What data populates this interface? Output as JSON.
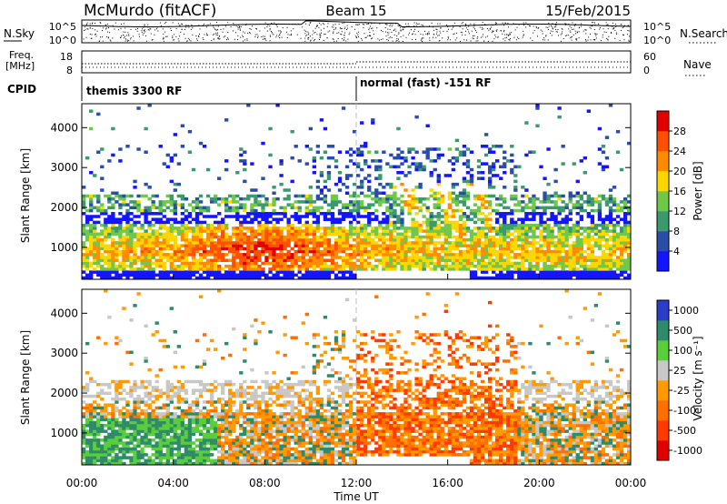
{
  "header": {
    "station": "McMurdo (fitACF)",
    "beam": "Beam 15",
    "date": "15/Feb/2015"
  },
  "top_panels": {
    "nsky_label": "N.Sky",
    "nsearch_label": "N.Search",
    "nsky_ticks": [
      "10^5",
      "10^0"
    ],
    "nsearch_ticks": [
      "10^5",
      "10^0"
    ],
    "freq_label_line1": "Freq.",
    "freq_label_line2": "[MHz]",
    "freq_ticks": [
      "18",
      "8"
    ],
    "nave_label": "Nave",
    "nave_ticks": [
      "60",
      "0"
    ],
    "cpid_label": "CPID",
    "cpid_segments": [
      {
        "label": "themis 3300 RF",
        "start_hour": 0
      },
      {
        "label": "normal (fast) -151 RF",
        "start_hour": 12
      }
    ]
  },
  "colors": {
    "power": [
      "#1414ff",
      "#2a4ea8",
      "#3a9a6e",
      "#70c84a",
      "#ffd700",
      "#ff8c00",
      "#ff5000",
      "#e00000"
    ],
    "velocity": [
      "#2a3cc8",
      "#2e8a6a",
      "#5acd3a",
      "#c8c8c8",
      "#ff9a00",
      "#ff7000",
      "#ff3a00",
      "#e00000"
    ]
  },
  "chart_data": [
    {
      "type": "heatmap",
      "title": "",
      "xlabel": "",
      "ylabel": "Slant Range [km]",
      "xlim": [
        0,
        24
      ],
      "ylim": [
        200,
        4600
      ],
      "y_ticks": [
        1000,
        2000,
        3000,
        4000
      ],
      "colorbar": {
        "label": "Power [dB]",
        "range": [
          0,
          32
        ],
        "ticks": [
          "4",
          "8",
          "12",
          "16",
          "20",
          "24",
          "28"
        ]
      }
    },
    {
      "type": "heatmap",
      "title": "",
      "xlabel": "Time UT",
      "ylabel": "Slant Range [km]",
      "xlim": [
        0,
        24
      ],
      "ylim": [
        200,
        4600
      ],
      "x_ticks": [
        "00:00",
        "04:00",
        "08:00",
        "12:00",
        "16:00",
        "20:00",
        "00:00"
      ],
      "y_ticks": [
        1000,
        2000,
        3000,
        4000
      ],
      "colorbar": {
        "label": "Velocity [m s⁻¹]",
        "ticks": [
          "1000",
          "500",
          "100",
          "25",
          "-25",
          "-100",
          "-500",
          "-1000"
        ]
      }
    }
  ]
}
